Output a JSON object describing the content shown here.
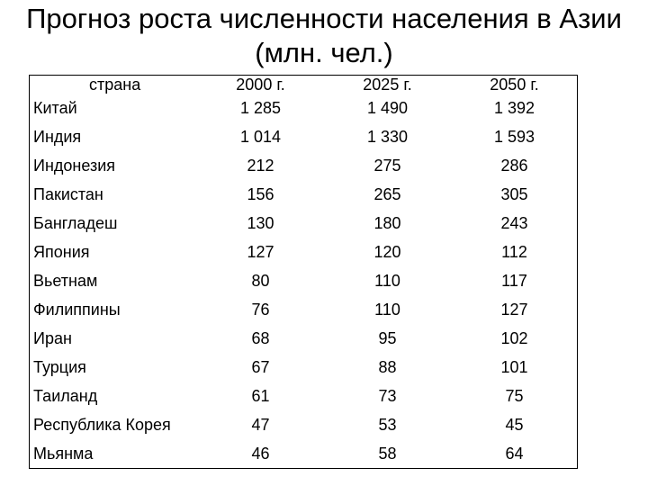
{
  "title": {
    "line1": "Прогноз роста численности населения в Азии",
    "line2": "(млн. чел.)"
  },
  "table": {
    "headers": [
      "страна",
      "2000 г.",
      "2025 г.",
      "2050 г."
    ],
    "rows": [
      [
        "Китай",
        "1 285",
        "1 490",
        "1 392"
      ],
      [
        "Индия",
        "1 014",
        "1 330",
        "1 593"
      ],
      [
        "Индонезия",
        "212",
        "275",
        "286"
      ],
      [
        "Пакистан",
        "156",
        "265",
        "305"
      ],
      [
        "Бангладеш",
        "130",
        "180",
        "243"
      ],
      [
        "Япония",
        "127",
        "120",
        "112"
      ],
      [
        "Вьетнам",
        "80",
        "110",
        "117"
      ],
      [
        "Филиппины",
        "76",
        "110",
        "127"
      ],
      [
        "Иран",
        "68",
        "95",
        "102"
      ],
      [
        "Турция",
        "67",
        "88",
        "101"
      ],
      [
        "Таиланд",
        "61",
        "73",
        "75"
      ],
      [
        "Республика Корея",
        "47",
        "53",
        "45"
      ],
      [
        "Мьянма",
        "46",
        "58",
        "64"
      ]
    ]
  }
}
